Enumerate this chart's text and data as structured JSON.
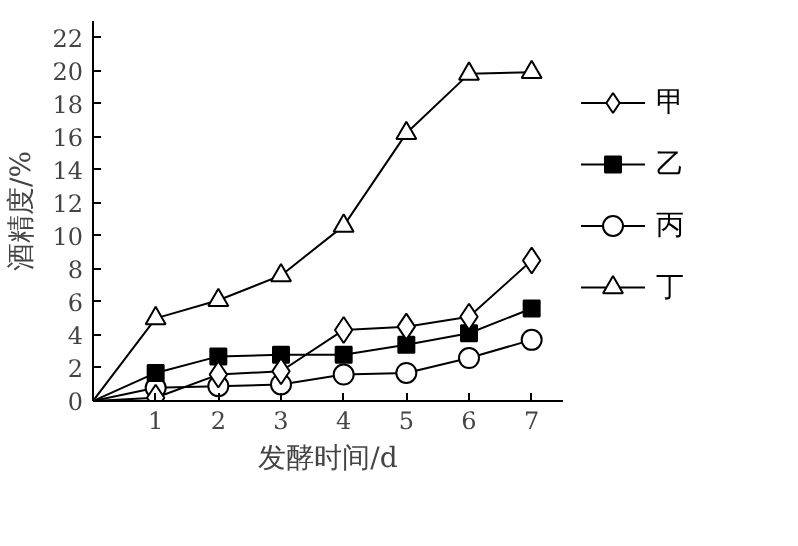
{
  "chart_data": {
    "type": "line",
    "xlabel": "发酵时间/d",
    "ylabel": "酒精度/%",
    "x": [
      0,
      1,
      2,
      3,
      4,
      5,
      6,
      7
    ],
    "xlim": [
      0,
      7.5
    ],
    "xticks": [
      1,
      2,
      3,
      4,
      5,
      6,
      7
    ],
    "ylim": [
      0,
      23
    ],
    "yticks": [
      0,
      2,
      4,
      6,
      8,
      10,
      12,
      14,
      16,
      18,
      20,
      22
    ],
    "legend": "right",
    "series": [
      {
        "name": "甲",
        "color": "#000000",
        "marker": "diamond",
        "values": [
          0,
          0.2,
          1.6,
          1.8,
          4.3,
          4.5,
          5.1,
          8.5
        ]
      },
      {
        "name": "乙",
        "color": "#000000",
        "marker": "square",
        "values": [
          0,
          1.7,
          2.7,
          2.8,
          2.8,
          3.4,
          4.1,
          5.6
        ]
      },
      {
        "name": "丙",
        "color": "#000000",
        "marker": "circle",
        "values": [
          0,
          0.8,
          0.9,
          1.0,
          1.6,
          1.7,
          2.6,
          3.7
        ]
      },
      {
        "name": "丁",
        "color": "#000000",
        "marker": "triangle",
        "values": [
          0,
          5.0,
          6.1,
          7.6,
          10.6,
          16.2,
          19.8,
          19.9
        ]
      }
    ]
  }
}
